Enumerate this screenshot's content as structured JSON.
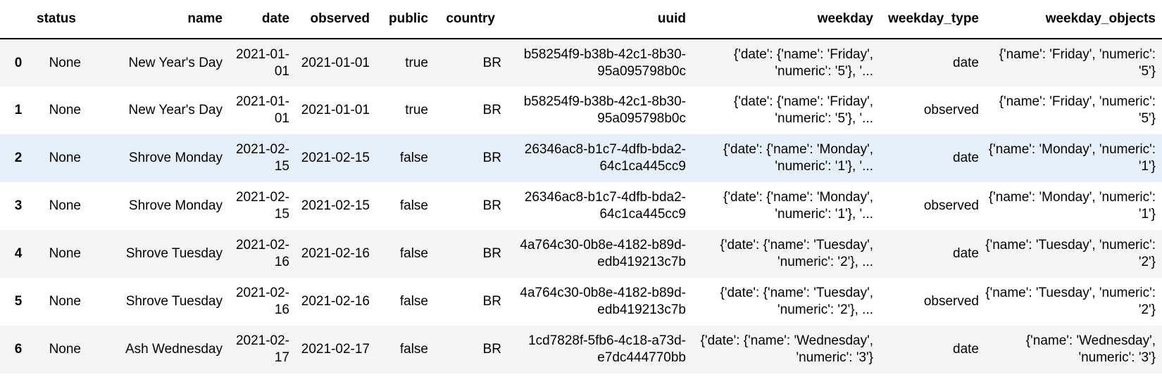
{
  "table": {
    "columns": [
      "status",
      "name",
      "date",
      "observed",
      "public",
      "country",
      "uuid",
      "weekday",
      "weekday_type",
      "weekday_objects"
    ],
    "rows": [
      {
        "index": "0",
        "status": "None",
        "name": "New Year's Day",
        "date": "2021-01-01",
        "observed": "2021-01-01",
        "public": "true",
        "country": "BR",
        "uuid": "b58254f9-b38b-42c1-8b30-95a095798b0c",
        "weekday": "{'date': {'name': 'Friday', 'numeric': '5'}, '...",
        "weekday_type": "date",
        "weekday_objects": "{'name': 'Friday', 'numeric': '5'}"
      },
      {
        "index": "1",
        "status": "None",
        "name": "New Year's Day",
        "date": "2021-01-01",
        "observed": "2021-01-01",
        "public": "true",
        "country": "BR",
        "uuid": "b58254f9-b38b-42c1-8b30-95a095798b0c",
        "weekday": "{'date': {'name': 'Friday', 'numeric': '5'}, '...",
        "weekday_type": "observed",
        "weekday_objects": "{'name': 'Friday', 'numeric': '5'}"
      },
      {
        "index": "2",
        "status": "None",
        "name": "Shrove Monday",
        "date": "2021-02-15",
        "observed": "2021-02-15",
        "public": "false",
        "country": "BR",
        "uuid": "26346ac8-b1c7-4dfb-bda2-64c1ca445cc9",
        "weekday": "{'date': {'name': 'Monday', 'numeric': '1'}, '...",
        "weekday_type": "date",
        "weekday_objects": "{'name': 'Monday', 'numeric': '1'}"
      },
      {
        "index": "3",
        "status": "None",
        "name": "Shrove Monday",
        "date": "2021-02-15",
        "observed": "2021-02-15",
        "public": "false",
        "country": "BR",
        "uuid": "26346ac8-b1c7-4dfb-bda2-64c1ca445cc9",
        "weekday": "{'date': {'name': 'Monday', 'numeric': '1'}, '...",
        "weekday_type": "observed",
        "weekday_objects": "{'name': 'Monday', 'numeric': '1'}"
      },
      {
        "index": "4",
        "status": "None",
        "name": "Shrove Tuesday",
        "date": "2021-02-16",
        "observed": "2021-02-16",
        "public": "false",
        "country": "BR",
        "uuid": "4a764c30-0b8e-4182-b89d-edb419213c7b",
        "weekday": "{'date': {'name': 'Tuesday', 'numeric': '2'}, ...",
        "weekday_type": "date",
        "weekday_objects": "{'name': 'Tuesday', 'numeric': '2'}"
      },
      {
        "index": "5",
        "status": "None",
        "name": "Shrove Tuesday",
        "date": "2021-02-16",
        "observed": "2021-02-16",
        "public": "false",
        "country": "BR",
        "uuid": "4a764c30-0b8e-4182-b89d-edb419213c7b",
        "weekday": "{'date': {'name': 'Tuesday', 'numeric': '2'}, ...",
        "weekday_type": "observed",
        "weekday_objects": "{'name': 'Tuesday', 'numeric': '2'}"
      },
      {
        "index": "6",
        "status": "None",
        "name": "Ash Wednesday",
        "date": "2021-02-17",
        "observed": "2021-02-17",
        "public": "false",
        "country": "BR",
        "uuid": "1cd7828f-5fb6-4c18-a73d-e7dc444770bb",
        "weekday": "{'date': {'name': 'Wednesday', 'numeric': '3'}",
        "weekday_type": "date",
        "weekday_objects": "{'name': 'Wednesday', 'numeric': '3'}"
      }
    ],
    "hovered_row": 2,
    "colors": {
      "stripe": "#f5f5f5",
      "hover": "#e5f0fb",
      "header_rule": "#000000"
    }
  }
}
